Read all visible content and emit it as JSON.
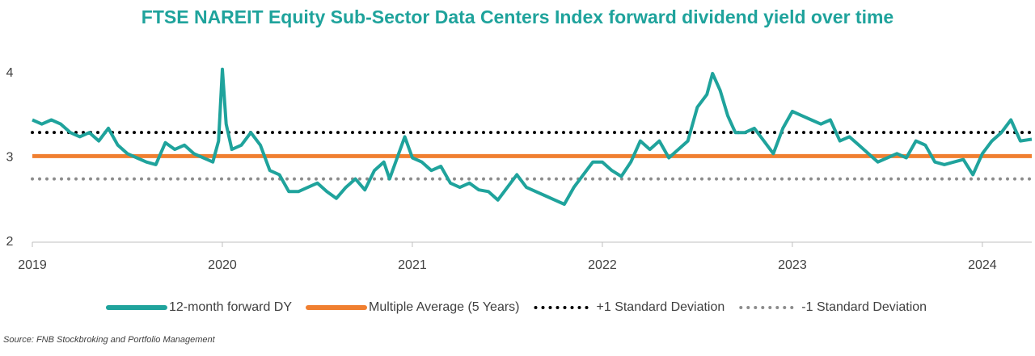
{
  "chart_data": {
    "type": "line",
    "title": "FTSE NAREIT Equity Sub-Sector Data Centers Index forward dividend yield over time",
    "source": "Source: FNB Stockbroking and Portfolio Management",
    "x": [
      2019.0,
      2019.05,
      2019.1,
      2019.15,
      2019.2,
      2019.25,
      2019.3,
      2019.35,
      2019.4,
      2019.45,
      2019.5,
      2019.55,
      2019.6,
      2019.65,
      2019.7,
      2019.75,
      2019.8,
      2019.85,
      2019.9,
      2019.95,
      2019.98,
      2020.0,
      2020.02,
      2020.05,
      2020.1,
      2020.15,
      2020.2,
      2020.25,
      2020.3,
      2020.35,
      2020.4,
      2020.45,
      2020.5,
      2020.55,
      2020.6,
      2020.65,
      2020.7,
      2020.75,
      2020.8,
      2020.85,
      2020.88,
      2020.92,
      2020.96,
      2021.0,
      2021.05,
      2021.1,
      2021.15,
      2021.2,
      2021.25,
      2021.3,
      2021.35,
      2021.4,
      2021.45,
      2021.5,
      2021.55,
      2021.6,
      2021.65,
      2021.7,
      2021.75,
      2021.8,
      2021.85,
      2021.9,
      2021.95,
      2022.0,
      2022.05,
      2022.1,
      2022.15,
      2022.2,
      2022.25,
      2022.3,
      2022.35,
      2022.4,
      2022.45,
      2022.5,
      2022.55,
      2022.58,
      2022.62,
      2022.66,
      2022.7,
      2022.75,
      2022.8,
      2022.85,
      2022.9,
      2022.95,
      2023.0,
      2023.05,
      2023.1,
      2023.15,
      2023.2,
      2023.25,
      2023.3,
      2023.35,
      2023.4,
      2023.45,
      2023.5,
      2023.55,
      2023.6,
      2023.65,
      2023.7,
      2023.75,
      2023.8,
      2023.85,
      2023.9,
      2023.95,
      2024.0,
      2024.05,
      2024.1,
      2024.15,
      2024.2,
      2024.26
    ],
    "series": [
      {
        "name": "12-month forward DY",
        "color": "#1fa39c",
        "values": [
          3.45,
          3.4,
          3.45,
          3.4,
          3.3,
          3.25,
          3.3,
          3.2,
          3.35,
          3.15,
          3.05,
          3.0,
          2.95,
          2.92,
          3.18,
          3.1,
          3.15,
          3.05,
          3.0,
          2.95,
          3.2,
          4.05,
          3.4,
          3.1,
          3.15,
          3.3,
          3.15,
          2.85,
          2.8,
          2.6,
          2.6,
          2.65,
          2.7,
          2.6,
          2.52,
          2.65,
          2.75,
          2.62,
          2.85,
          2.95,
          2.75,
          3.0,
          3.25,
          3.0,
          2.95,
          2.85,
          2.9,
          2.7,
          2.65,
          2.7,
          2.62,
          2.6,
          2.5,
          2.65,
          2.8,
          2.65,
          2.6,
          2.55,
          2.5,
          2.45,
          2.65,
          2.8,
          2.95,
          2.95,
          2.85,
          2.78,
          2.95,
          3.2,
          3.1,
          3.2,
          3.0,
          3.1,
          3.2,
          3.6,
          3.75,
          4.0,
          3.8,
          3.5,
          3.3,
          3.3,
          3.35,
          3.2,
          3.05,
          3.35,
          3.55,
          3.5,
          3.45,
          3.4,
          3.45,
          3.2,
          3.25,
          3.15,
          3.05,
          2.95,
          3.0,
          3.05,
          3.0,
          3.2,
          3.15,
          2.95,
          2.92,
          2.95,
          2.98,
          2.8,
          3.05,
          3.2,
          3.3,
          3.45,
          3.2,
          3.22
        ]
      }
    ],
    "reference_lines": [
      {
        "name": "Multiple Average (5 Years)",
        "color": "#f07f30",
        "value": 3.02,
        "style": "solid"
      },
      {
        "name": "+1 Standard Deviation",
        "color": "#000000",
        "value": 3.3,
        "style": "dotted"
      },
      {
        "name": "-1 Standard Deviation",
        "color": "#8c8c8c",
        "value": 2.75,
        "style": "dotted"
      }
    ],
    "xlim": [
      2019,
      2024.26
    ],
    "xticks": [
      2019,
      2020,
      2021,
      2022,
      2023,
      2024
    ],
    "ylim": [
      2,
      4.2
    ],
    "yticks": [
      2,
      3,
      4
    ],
    "grid": false,
    "legend": "bottom"
  }
}
